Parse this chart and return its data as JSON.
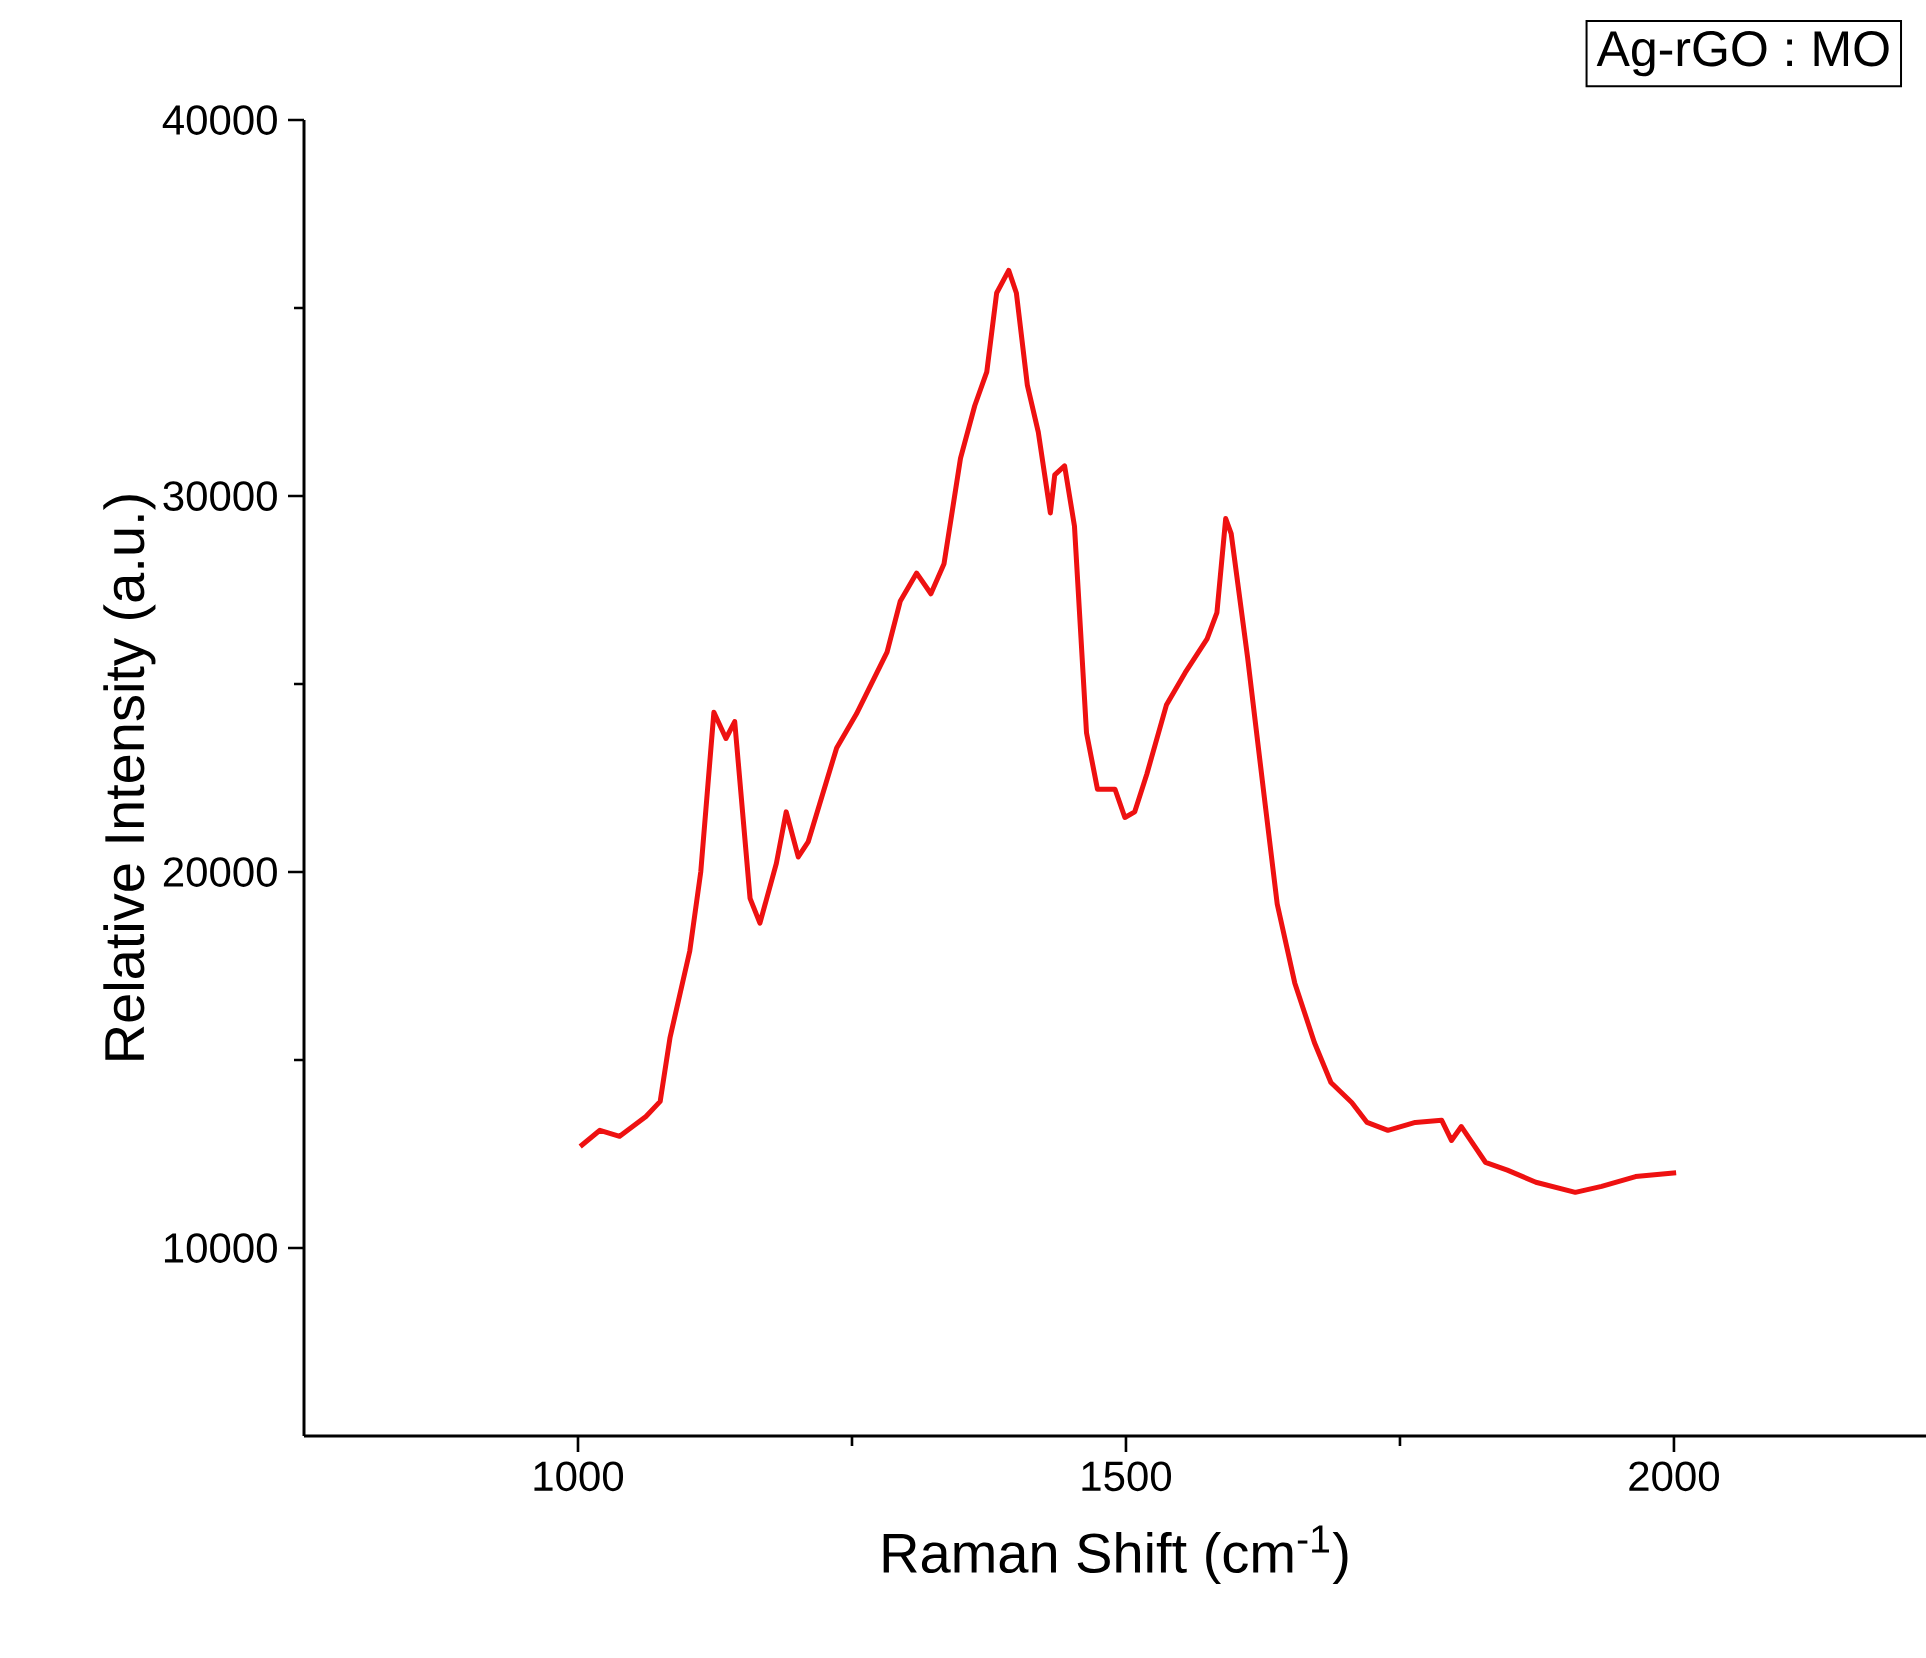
{
  "chart_data": {
    "type": "line",
    "xlabel": "Raman Shift (cm$^{-1}$)",
    "ylabel": "Relative Intensity (a.u.)",
    "annotations": [
      "Ag-rGO : MO"
    ],
    "xlim": [
      750,
      2230
    ],
    "ylim": [
      5000,
      40000
    ],
    "xticks": [
      1000,
      1500,
      2000
    ],
    "yticks": [
      10000,
      20000,
      30000,
      40000
    ],
    "line_style": "solid",
    "series": [
      {
        "color": "#ee1111",
        "x": [
          1002,
          1020,
          1038,
          1062,
          1075,
          1084,
          1102,
          1112,
          1124,
          1135,
          1143,
          1157,
          1166,
          1181,
          1190,
          1201,
          1210,
          1236,
          1254,
          1282,
          1294,
          1309,
          1322,
          1334,
          1349,
          1362,
          1373,
          1382,
          1393,
          1400,
          1410,
          1420,
          1431,
          1435,
          1444,
          1453,
          1464,
          1474,
          1490,
          1499,
          1508,
          1519,
          1537,
          1554,
          1574,
          1583,
          1591,
          1596,
          1611,
          1627,
          1638,
          1654,
          1672,
          1687,
          1706,
          1720,
          1739,
          1764,
          1788,
          1797,
          1806,
          1828,
          1848,
          1874,
          1910,
          1934,
          1965,
          2002
        ],
        "values": [
          12700,
          13130,
          12970,
          13500,
          13900,
          15600,
          17900,
          20000,
          24250,
          23550,
          24000,
          19300,
          18640,
          20230,
          21600,
          20400,
          20800,
          23300,
          24200,
          25850,
          27200,
          27950,
          27400,
          28200,
          31000,
          32400,
          33300,
          35400,
          36000,
          35400,
          32950,
          31700,
          29550,
          30560,
          30800,
          29200,
          23700,
          22200,
          22200,
          21450,
          21600,
          22600,
          24450,
          25300,
          26200,
          26900,
          29400,
          29000,
          25700,
          21800,
          19150,
          17050,
          15460,
          14400,
          13870,
          13340,
          13130,
          13340,
          13400,
          12860,
          13230,
          12280,
          12070,
          11750,
          11480,
          11640,
          11900,
          12000
        ]
      }
    ]
  }
}
